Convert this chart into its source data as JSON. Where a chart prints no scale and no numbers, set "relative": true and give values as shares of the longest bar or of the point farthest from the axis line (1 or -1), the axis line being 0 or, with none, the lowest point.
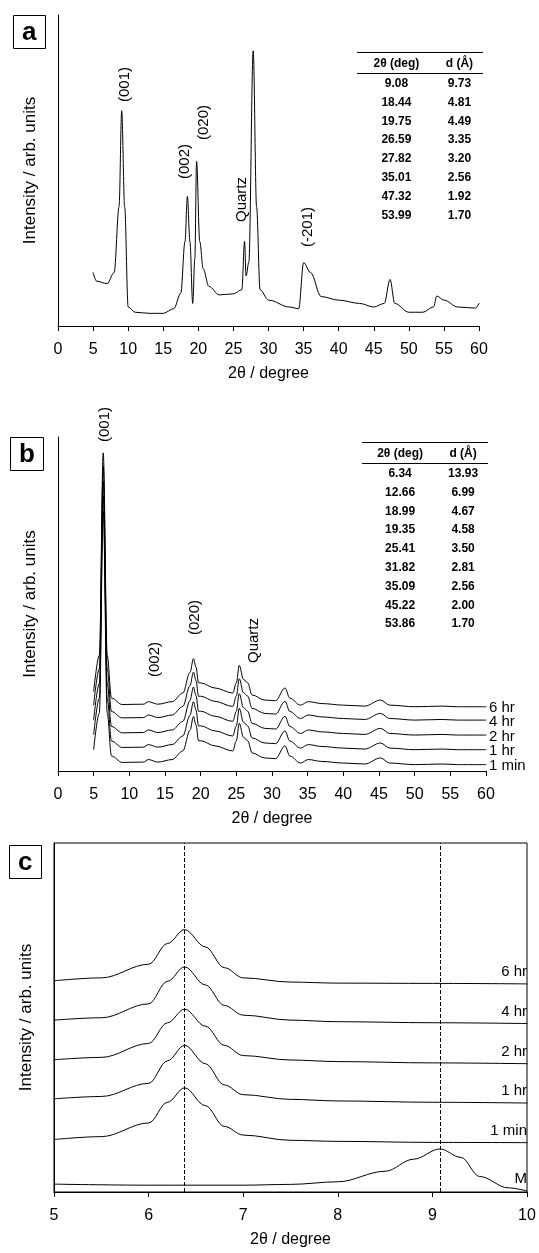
{
  "chart_data": [
    {
      "type": "line",
      "title": "a",
      "xlabel": "2θ / degree",
      "ylabel": "Intensity / arb. units",
      "relative": true,
      "xlim": [
        0,
        60
      ],
      "xticks": [
        0,
        5,
        10,
        15,
        20,
        25,
        30,
        35,
        40,
        45,
        50,
        55,
        60
      ],
      "legend": false,
      "grid": false,
      "marker": "none",
      "line_style": "solid",
      "x": [
        5,
        5.5,
        7,
        8,
        8.7,
        9.08,
        9.5,
        10,
        11,
        13,
        15,
        16.5,
        17.5,
        18.1,
        18.44,
        18.8,
        19.2,
        19.5,
        19.75,
        20.2,
        20.7,
        21.5,
        23,
        25,
        26.2,
        26.59,
        26.8,
        27.2,
        27.82,
        28.3,
        28.8,
        30,
        33,
        34.3,
        35.01,
        36,
        37.5,
        40,
        43,
        45,
        46.5,
        47.32,
        48,
        50,
        52,
        53.5,
        53.99,
        55,
        57,
        59.5,
        60
      ],
      "series": [
        {
          "color": "#000000",
          "values": [
            0.194,
            0.163,
            0.154,
            0.194,
            0.433,
            0.782,
            0.433,
            0.069,
            0.05,
            0.046,
            0.046,
            0.063,
            0.119,
            0.307,
            0.471,
            0.307,
            0.082,
            0.245,
            0.598,
            0.307,
            0.207,
            0.144,
            0.113,
            0.117,
            0.132,
            0.307,
            0.182,
            0.232,
            1,
            0.433,
            0.132,
            0.094,
            0.069,
            0.063,
            0.23,
            0.194,
            0.107,
            0.094,
            0.082,
            0.069,
            0.082,
            0.169,
            0.082,
            0.05,
            0.05,
            0.069,
            0.109,
            0.094,
            0.069,
            0.065,
            0.082
          ]
        }
      ],
      "annotations": [
        "(001)",
        "(002)",
        "(020)",
        "Quartz",
        "(-201)",
        "2θ (deg)",
        "d (Å)",
        "9.08",
        "9.73",
        "18.44",
        "4.81",
        "19.75",
        "4.49",
        "26.59",
        "3.35",
        "27.82",
        "3.20",
        "35.01",
        "2.56",
        "47.32",
        "1.92",
        "53.99",
        "1.70"
      ]
    },
    {
      "type": "line",
      "title": "b",
      "xlabel": "2θ / degree",
      "ylabel": "Intensity / arb. units",
      "relative": true,
      "xlim": [
        0,
        60
      ],
      "xticks": [
        0,
        5,
        10,
        15,
        20,
        25,
        30,
        35,
        40,
        45,
        50,
        55,
        60
      ],
      "legend": false,
      "grid": false,
      "marker": "none",
      "line_style": "solid",
      "x": [
        5,
        5.8,
        6.34,
        6.9,
        7.5,
        9,
        12,
        12.66,
        14,
        16,
        17.5,
        18.5,
        18.99,
        19.35,
        19.7,
        20,
        22,
        24.5,
        25,
        25.41,
        26,
        26.6,
        27.2,
        29,
        30.5,
        31.82,
        32.5,
        34,
        35.09,
        37,
        40,
        43,
        45.22,
        46.5,
        50,
        53.86,
        56,
        60
      ],
      "series": [
        {
          "name": "1 min",
          "color": "#000000",
          "values": [
            0.068,
            0.182,
            0.818,
            0.182,
            0.047,
            0.027,
            0.028,
            0.036,
            0.028,
            0.036,
            0.063,
            0.128,
            0.171,
            0.144,
            0.095,
            0.095,
            0.079,
            0.063,
            0.095,
            0.15,
            0.106,
            0.095,
            0.057,
            0.041,
            0.039,
            0.079,
            0.047,
            0.025,
            0.036,
            0.03,
            0.025,
            0.022,
            0.041,
            0.025,
            0.02,
            0.022,
            0.02,
            0.02
          ]
        },
        {
          "name": "1 hr",
          "color": "#000000",
          "values": [
            0.115,
            0.229,
            0.865,
            0.229,
            0.094,
            0.074,
            0.075,
            0.083,
            0.075,
            0.083,
            0.11,
            0.175,
            0.218,
            0.191,
            0.142,
            0.142,
            0.126,
            0.11,
            0.142,
            0.197,
            0.153,
            0.142,
            0.104,
            0.088,
            0.086,
            0.126,
            0.094,
            0.072,
            0.083,
            0.077,
            0.072,
            0.069,
            0.088,
            0.072,
            0.067,
            0.069,
            0.067,
            0.067
          ]
        },
        {
          "name": "2 hr",
          "color": "#000000",
          "values": [
            0.161,
            0.275,
            0.911,
            0.275,
            0.14,
            0.12,
            0.121,
            0.129,
            0.121,
            0.129,
            0.156,
            0.221,
            0.264,
            0.237,
            0.188,
            0.188,
            0.172,
            0.156,
            0.188,
            0.243,
            0.199,
            0.188,
            0.15,
            0.134,
            0.132,
            0.172,
            0.14,
            0.118,
            0.129,
            0.123,
            0.118,
            0.115,
            0.134,
            0.118,
            0.113,
            0.115,
            0.113,
            0.113
          ]
        },
        {
          "name": "4 hr",
          "color": "#000000",
          "values": [
            0.208,
            0.322,
            0.958,
            0.322,
            0.187,
            0.167,
            0.168,
            0.176,
            0.168,
            0.176,
            0.203,
            0.268,
            0.311,
            0.284,
            0.235,
            0.235,
            0.219,
            0.203,
            0.235,
            0.29,
            0.246,
            0.235,
            0.197,
            0.181,
            0.179,
            0.219,
            0.187,
            0.165,
            0.176,
            0.17,
            0.165,
            0.162,
            0.181,
            0.165,
            0.16,
            0.162,
            0.16,
            0.16
          ]
        },
        {
          "name": "6 hr",
          "color": "#000000",
          "values": [
            0.25,
            0.364,
            1,
            0.364,
            0.229,
            0.209,
            0.21,
            0.218,
            0.21,
            0.218,
            0.245,
            0.31,
            0.353,
            0.326,
            0.277,
            0.277,
            0.261,
            0.245,
            0.277,
            0.332,
            0.288,
            0.277,
            0.239,
            0.223,
            0.221,
            0.261,
            0.229,
            0.207,
            0.218,
            0.212,
            0.207,
            0.204,
            0.223,
            0.207,
            0.202,
            0.204,
            0.202,
            0.202
          ]
        }
      ],
      "annotations": [
        "(001)",
        "(002)",
        "(020)",
        "Quartz",
        "2θ (deg)",
        "d (Å)",
        "6.34",
        "13.93",
        "12.66",
        "6.99",
        "18.99",
        "4.67",
        "19.35",
        "4.58",
        "25.41",
        "3.50",
        "31.82",
        "2.81",
        "35.09",
        "2.56",
        "45.22",
        "2.00",
        "53.86",
        "1.70"
      ]
    },
    {
      "type": "line",
      "title": "c",
      "xlabel": "2θ / degree",
      "ylabel": "Intensity / arb. units",
      "relative": true,
      "xlim": [
        5,
        10
      ],
      "xticks": [
        5,
        6,
        7,
        8,
        9,
        10
      ],
      "legend": false,
      "grid": false,
      "marker": "none",
      "line_style": "solid",
      "x": [
        5,
        5.5,
        6,
        6.2,
        6.38,
        6.6,
        6.8,
        7,
        7.5,
        8,
        9,
        10
      ],
      "series": [
        {
          "name": "M",
          "color": "#000000",
          "x": [
            5,
            6,
            7,
            7.5,
            8,
            8.5,
            8.8,
            9.08,
            9.3,
            9.5,
            9.8,
            10
          ],
          "values": [
            0.03,
            0.026,
            0.026,
            0.029,
            0.039,
            0.079,
            0.125,
            0.164,
            0.132,
            0.059,
            0.016,
            0.004
          ]
        },
        {
          "name": "1 min",
          "color": "#000000",
          "values": [
            0.2,
            0.211,
            0.263,
            0.342,
            0.397,
            0.329,
            0.25,
            0.217,
            0.197,
            0.193,
            0.189,
            0.188
          ]
        },
        {
          "name": "1 hr",
          "color": "#000000",
          "values": [
            0.355,
            0.364,
            0.414,
            0.5,
            0.559,
            0.489,
            0.408,
            0.371,
            0.353,
            0.347,
            0.342,
            0.339
          ]
        },
        {
          "name": "2 hr",
          "color": "#000000",
          "values": [
            0.504,
            0.513,
            0.566,
            0.645,
            0.697,
            0.632,
            0.559,
            0.52,
            0.503,
            0.497,
            0.492,
            0.489
          ]
        },
        {
          "name": "4 hr",
          "color": "#000000",
          "values": [
            0.655,
            0.664,
            0.717,
            0.803,
            0.858,
            0.789,
            0.711,
            0.674,
            0.655,
            0.649,
            0.645,
            0.642
          ]
        },
        {
          "name": "6 hr",
          "color": "#000000",
          "values": [
            0.805,
            0.816,
            0.868,
            0.947,
            1,
            0.934,
            0.855,
            0.816,
            0.8,
            0.796,
            0.795,
            0.793
          ]
        }
      ],
      "ref_lines": [
        {
          "axis": "x",
          "value": 6.38,
          "color": "#000000",
          "line_style": "dashed"
        },
        {
          "axis": "x",
          "value": 9.08,
          "color": "#000000",
          "line_style": "dashed"
        }
      ]
    }
  ]
}
